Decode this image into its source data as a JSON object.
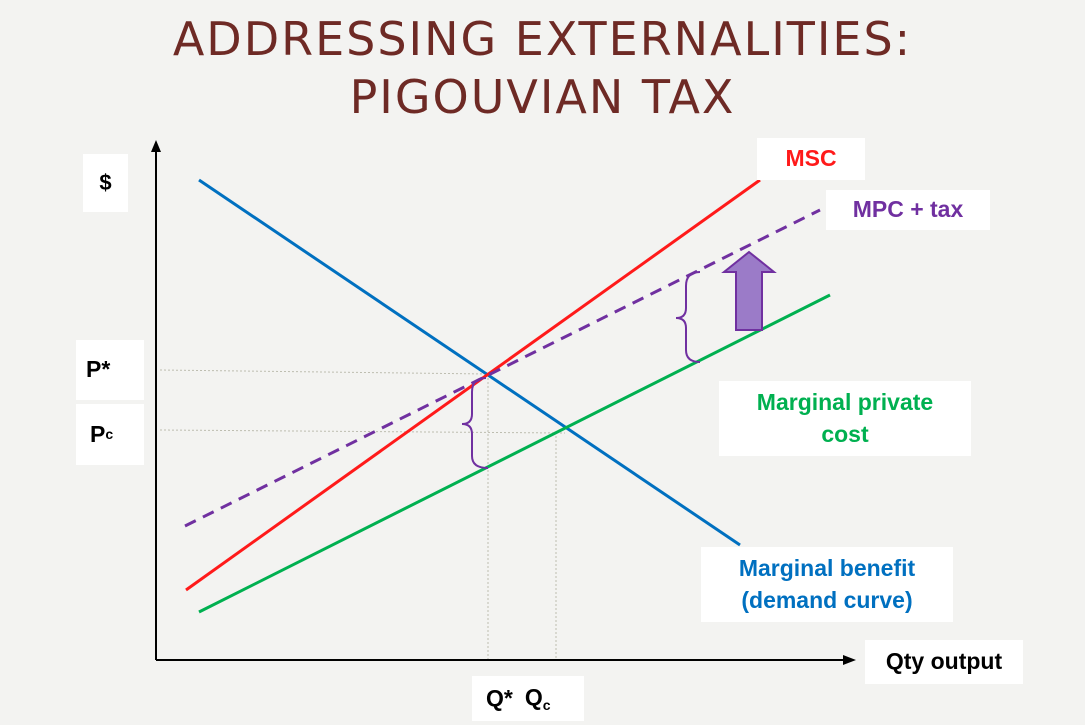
{
  "title": {
    "line1": "ADDRESSING EXTERNALITIES:",
    "line2": "PIGOUVIAN TAX"
  },
  "axes": {
    "y_label": "$",
    "x_label": "Qty output"
  },
  "price_labels": {
    "p_star": "P*",
    "p_c_main": "P",
    "p_c_sub": "c"
  },
  "quantity_labels": {
    "q_star": "Q*",
    "q_c_main": "Q",
    "q_c_sub": "c"
  },
  "curves": {
    "msc": {
      "label": "MSC",
      "color": "#ff1a1a"
    },
    "mpc_tax": {
      "label": "MPC + tax",
      "color": "#7030a0"
    },
    "mpc": {
      "label_line1": "Marginal private",
      "label_line2": "cost",
      "color": "#00b050"
    },
    "mb": {
      "label_line1": "Marginal benefit",
      "label_line2": "(demand curve)",
      "color": "#0070c0"
    }
  },
  "arrow_color": "#9b7bc8"
}
